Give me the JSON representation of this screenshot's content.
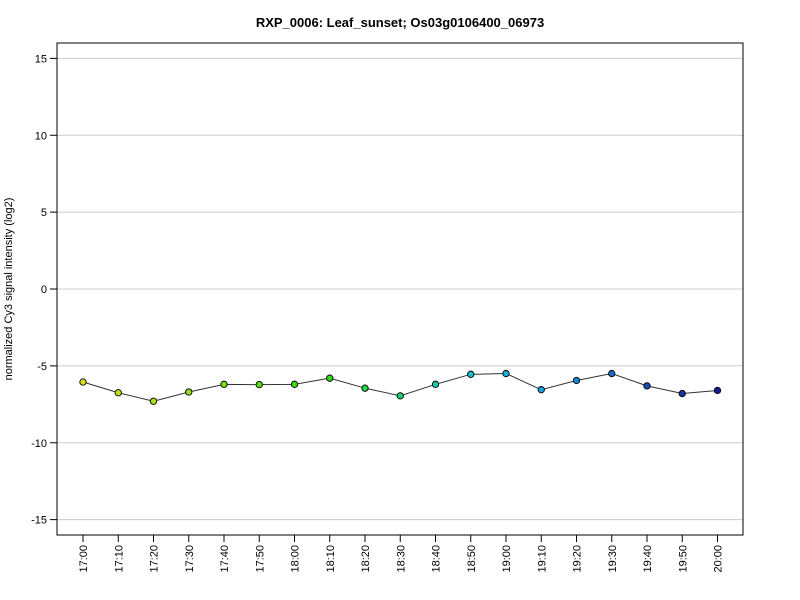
{
  "chart_data": {
    "type": "line",
    "title": "RXP_0006: Leaf_sunset; Os03g0106400_06973",
    "xlabel": "",
    "ylabel": "normalized Cy3 signal intensity (log2)",
    "categories": [
      "17:00",
      "17:10",
      "17:20",
      "17:30",
      "17:40",
      "17:50",
      "18:00",
      "18:10",
      "18:20",
      "18:30",
      "18:40",
      "18:50",
      "19:00",
      "19:10",
      "19:20",
      "19:30",
      "19:40",
      "19:50",
      "20:00"
    ],
    "series": [
      {
        "values": [
          -6.05,
          -6.75,
          -7.3,
          -6.7,
          -6.2,
          -6.22,
          -6.2,
          -5.8,
          -6.45,
          -6.95,
          -6.2,
          -5.55,
          -5.5,
          -6.55,
          -5.95,
          -5.5,
          -6.3,
          -6.8,
          -6.6
        ],
        "colors": [
          "#d4e020",
          "#c4e01c",
          "#aee018",
          "#94df14",
          "#7ade12",
          "#5edc10",
          "#44da10",
          "#30d820",
          "#22d548",
          "#18d27a",
          "#12cca8",
          "#10c4c8",
          "#10b4d8",
          "#14a0d8",
          "#1888d0",
          "#1a6cc4",
          "#1a50b4",
          "#1834a4",
          "#141c94"
        ]
      }
    ],
    "ylim": [
      -16,
      16
    ],
    "yticks": [
      -15,
      -10,
      -5,
      0,
      5,
      10,
      15
    ],
    "grid": true,
    "line_color": "#333333"
  }
}
